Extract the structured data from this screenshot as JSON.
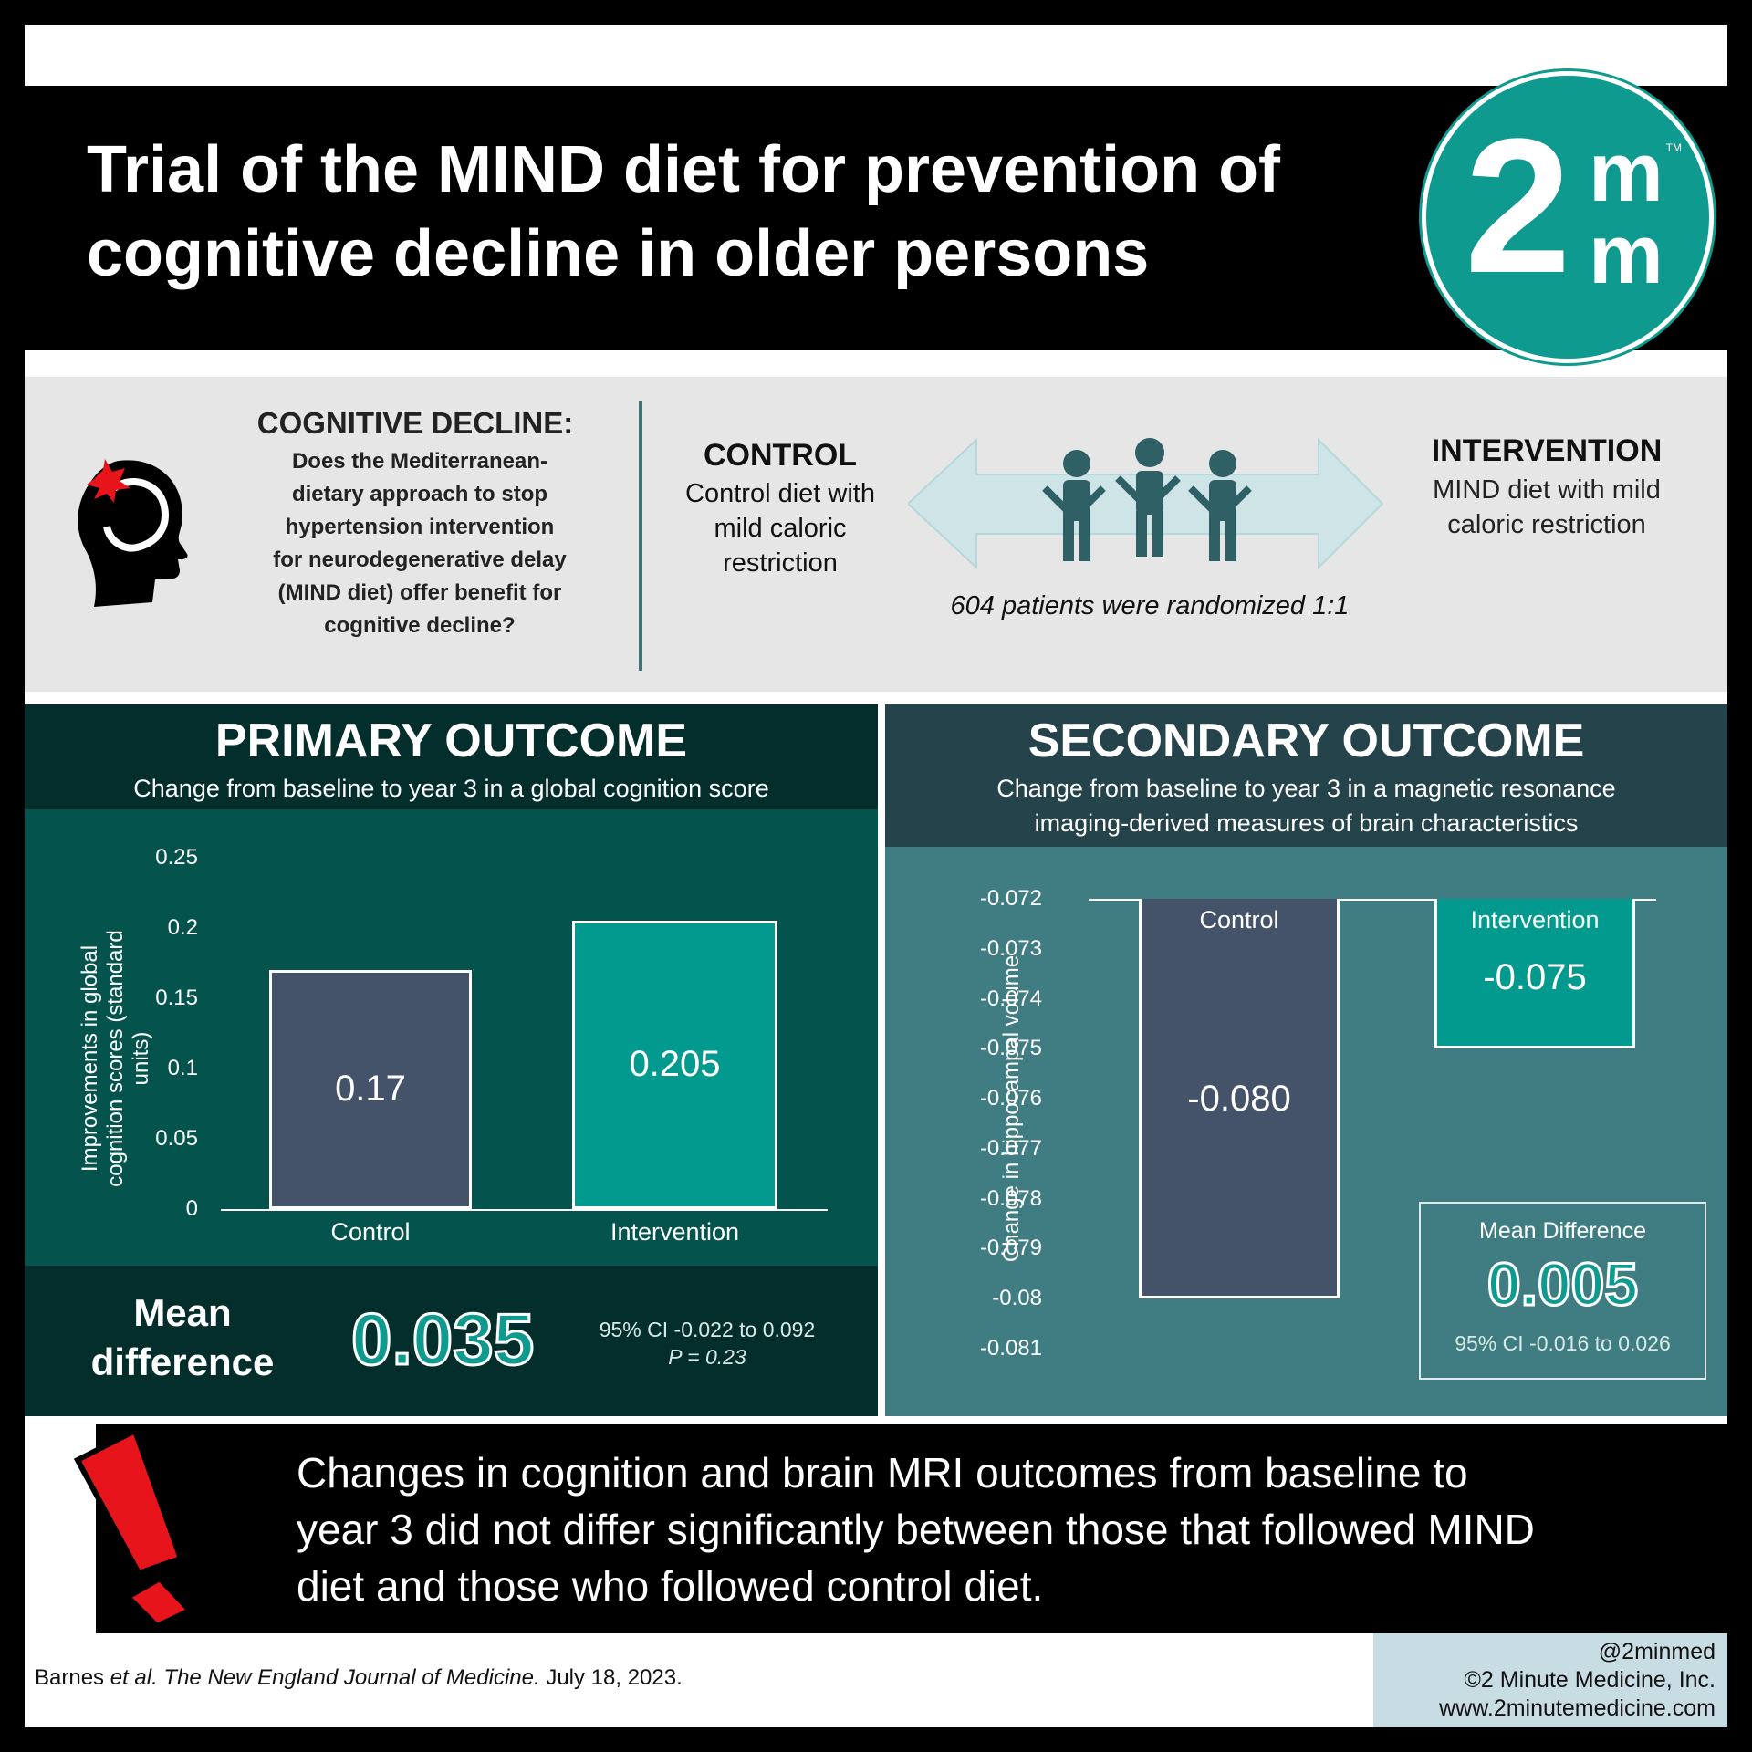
{
  "header": {
    "title_line1": "Trial of the MIND diet for prevention of",
    "title_line2": "cognitive decline in older persons",
    "logo_number": "2",
    "logo_letter1": "m",
    "logo_letter2": "m",
    "logo_tm": "TM"
  },
  "question": {
    "title": "COGNITIVE DECLINE:",
    "line1": "Does the Mediterranean-",
    "line2": "dietary approach to stop",
    "line3": "hypertension intervention",
    "line4": "for neurodegenerative delay",
    "line5": "(MIND diet) offer benefit for",
    "line6": "cognitive decline?",
    "icon": "head-with-injury-icon"
  },
  "arms": {
    "control_title": "CONTROL",
    "control_line1": "Control diet with",
    "control_line2": "mild caloric",
    "control_line3": "restriction",
    "intervention_title": "INTERVENTION",
    "intervention_line1": "MIND diet with mild",
    "intervention_line2": "caloric restriction",
    "randomization": "604 patients were randomized 1:1",
    "icon": "people-icon"
  },
  "primary": {
    "title": "PRIMARY OUTCOME",
    "subtitle": "Change from baseline to year 3 in a global cognition score",
    "mean_label_line1": "Mean",
    "mean_label_line2": "difference",
    "mean_value": "0.035",
    "ci": "95% CI -0.022 to 0.092",
    "p": "P = 0.23"
  },
  "secondary": {
    "title": "SECONDARY OUTCOME",
    "subtitle_line1": "Change from baseline to year 3 in a magnetic resonance",
    "subtitle_line2": "imaging-derived measures of brain characteristics",
    "box_title": "Mean Difference",
    "box_value": "0.005",
    "box_ci": "95% CI -0.016 to 0.026"
  },
  "chart_data": [
    {
      "type": "bar",
      "categories": [
        "Control",
        "Intervention"
      ],
      "values": [
        0.17,
        0.205
      ],
      "value_labels": [
        "0.17",
        "0.205"
      ],
      "ylabel_line1": "Improvements in global",
      "ylabel_line2": "cognition scores (standard",
      "ylabel_line3": "units)",
      "ylim": [
        0,
        0.25
      ],
      "yticks": [
        "0",
        "0.05",
        "0.1",
        "0.15",
        "0.2",
        "0.25"
      ],
      "colors": [
        "#44536a",
        "#029a8f"
      ]
    },
    {
      "type": "bar",
      "categories": [
        "Control",
        "Intervention"
      ],
      "values": [
        -0.08,
        -0.075
      ],
      "value_labels": [
        "-0.080",
        "-0.075"
      ],
      "ylabel": "Change in hippocampal volume",
      "ylim": [
        -0.081,
        -0.072
      ],
      "yticks": [
        "-0.072",
        "-0.073",
        "-0.074",
        "-0.075",
        "-0.076",
        "-0.077",
        "-0.078",
        "-0.079",
        "-0.08",
        "-0.081"
      ],
      "colors": [
        "#44536a",
        "#029a8f"
      ]
    }
  ],
  "conclusion": {
    "text_line1": "Changes in cognition and brain MRI outcomes from baseline to",
    "text_line2": "year 3 did not differ significantly between those that followed MIND",
    "text_line3": "diet and those who followed control diet.",
    "icon": "exclamation-icon"
  },
  "footer": {
    "citation_author": "Barnes ",
    "citation_etal": "et al.",
    "citation_journal": " The New England Journal of Medicine.",
    "citation_date": " July 18, 2023.",
    "handle": "@2minmed",
    "copyright": "©2 Minute Medicine, Inc.",
    "url": "www.2minutemedicine.com"
  }
}
